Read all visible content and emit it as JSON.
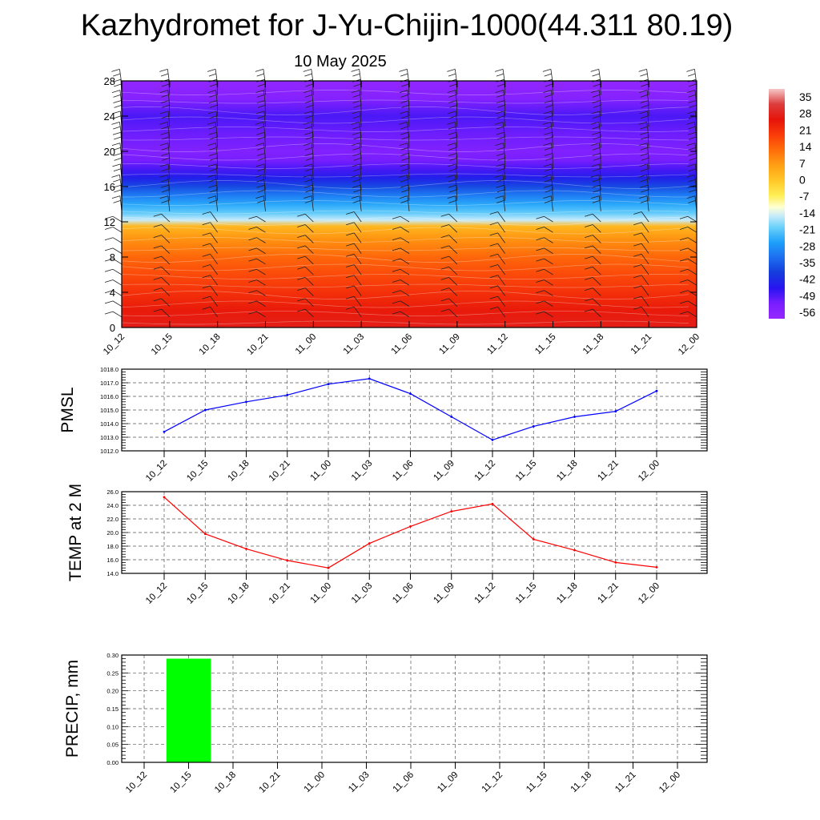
{
  "title": "Kazhydromet for J-Yu-Chijin-1000(44.311 80.19)",
  "subtitle": "10 May 2025",
  "time_labels": [
    "10_12",
    "10_15",
    "10_18",
    "10_21",
    "11_00",
    "11_03",
    "11_06",
    "11_09",
    "11_12",
    "11_15",
    "11_18",
    "11_21",
    "12_00"
  ],
  "chart_data": [
    {
      "type": "heatmap",
      "name": "upper-air-temperature-cross-section",
      "x": [
        "10_12",
        "10_15",
        "10_18",
        "10_21",
        "11_00",
        "11_03",
        "11_06",
        "11_09",
        "11_12",
        "11_15",
        "11_18",
        "11_21",
        "12_00"
      ],
      "ylim": [
        0,
        28
      ],
      "yticks": [
        0,
        4,
        8,
        12,
        16,
        20,
        24,
        28
      ],
      "colorbar": {
        "labels": [
          "35",
          "28",
          "21",
          "14",
          "7",
          "0",
          "-7",
          "-14",
          "-21",
          "-28",
          "-35",
          "-42",
          "-49",
          "-56"
        ],
        "range": [
          -63,
          42
        ]
      },
      "profile_levels": [
        0,
        2,
        4,
        6,
        8,
        10,
        11.5,
        12.2,
        13,
        14,
        15,
        16,
        17,
        18,
        19,
        20,
        22,
        24,
        26,
        28
      ],
      "profile_values": [
        30,
        27,
        23,
        19,
        15,
        9,
        3,
        -16,
        -22,
        -27,
        -33,
        -40,
        -47,
        -52,
        -56,
        -58,
        -55,
        -52,
        -59,
        -62
      ],
      "wind_barbs": true
    },
    {
      "type": "line",
      "name": "pmsl",
      "ylabel": "PMSL",
      "ylim": [
        1012.0,
        1018.0
      ],
      "yticks": [
        "1012.0",
        "1013.0",
        "1014.0",
        "1015.0",
        "1016.0",
        "1017.0",
        "1018.0"
      ],
      "grid": true,
      "color": "#0000ff",
      "x": [
        "10_12",
        "10_15",
        "10_18",
        "10_21",
        "11_00",
        "11_03",
        "11_06",
        "11_09",
        "11_12",
        "11_15",
        "11_18",
        "11_21",
        "12_00"
      ],
      "values": [
        1013.4,
        1015.0,
        1015.6,
        1016.1,
        1016.9,
        1017.3,
        1016.2,
        1014.5,
        1012.8,
        1013.8,
        1014.5,
        1014.9,
        1016.4
      ]
    },
    {
      "type": "line",
      "name": "temp-2m",
      "ylabel": "TEMP at 2 M",
      "ylim": [
        14.0,
        26.0
      ],
      "yticks": [
        "14.0",
        "16.0",
        "18.0",
        "20.0",
        "22.0",
        "24.0",
        "26.0"
      ],
      "grid": true,
      "color": "#ff0000",
      "x": [
        "10_12",
        "10_15",
        "10_18",
        "10_21",
        "11_00",
        "11_03",
        "11_06",
        "11_09",
        "11_12",
        "11_15",
        "11_18",
        "11_21",
        "12_00"
      ],
      "values": [
        25.2,
        19.8,
        17.6,
        15.9,
        14.8,
        18.4,
        20.9,
        23.1,
        24.2,
        19.0,
        17.4,
        15.6,
        14.9
      ]
    },
    {
      "type": "bar",
      "name": "precip",
      "ylabel": "PRECIP, mm",
      "ylim": [
        0,
        0.3
      ],
      "yticks": [
        "0.00",
        "0.05",
        "0.10",
        "0.15",
        "0.20",
        "0.25",
        "0.30"
      ],
      "grid": true,
      "color": "#00ff00",
      "categories": [
        "10_12",
        "10_15",
        "10_18",
        "10_21",
        "11_00",
        "11_03",
        "11_06",
        "11_09",
        "11_12",
        "11_15",
        "11_18",
        "11_21",
        "12_00"
      ],
      "values": [
        0,
        0.29,
        0,
        0,
        0,
        0,
        0,
        0,
        0,
        0,
        0,
        0,
        0
      ]
    }
  ]
}
